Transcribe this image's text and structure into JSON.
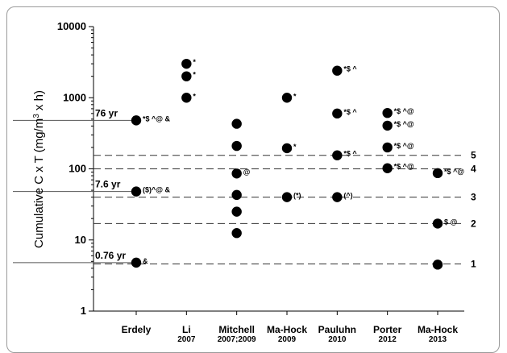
{
  "chart_data": {
    "type": "scatter",
    "ylabel_parts": {
      "main": "Cumulative C x T (mg/m",
      "sup": "3",
      "end": " x h)"
    },
    "y_scale": "log",
    "ylim": [
      1,
      10000
    ],
    "y_ticks": [
      "1",
      "10",
      "100",
      "1000",
      "10000"
    ],
    "categories": [
      {
        "name": "Erdely",
        "year": ""
      },
      {
        "name": "Li",
        "year": "2007"
      },
      {
        "name": "Mitchell",
        "year": "2007;2009"
      },
      {
        "name": "Ma-Hock",
        "year": "2009"
      },
      {
        "name": "Pauluhn",
        "year": "2010"
      },
      {
        "name": "Porter",
        "year": "2012"
      },
      {
        "name": "Ma-Hock",
        "year": "2013"
      }
    ],
    "reference_levels": [
      {
        "label": "1",
        "value": 4.6
      },
      {
        "label": "2",
        "value": 17
      },
      {
        "label": "3",
        "value": 40
      },
      {
        "label": "4",
        "value": 100
      },
      {
        "label": "5",
        "value": 155
      }
    ],
    "human_equivalents": [
      {
        "label": "76 yr",
        "value": 480
      },
      {
        "label": "7.6 yr",
        "value": 48
      },
      {
        "label": "0.76 yr",
        "value": 4.8
      }
    ],
    "points": [
      {
        "category": 0,
        "value": 480,
        "annotation": "*$ ^@ &"
      },
      {
        "category": 0,
        "value": 48,
        "annotation": "($)^@ &"
      },
      {
        "category": 0,
        "value": 4.8,
        "annotation": "&"
      },
      {
        "category": 1,
        "value": 3000,
        "annotation": "*"
      },
      {
        "category": 1,
        "value": 2000,
        "annotation": "*"
      },
      {
        "category": 1,
        "value": 1000,
        "annotation": "*"
      },
      {
        "category": 2,
        "value": 430,
        "annotation": ""
      },
      {
        "category": 2,
        "value": 210,
        "annotation": ""
      },
      {
        "category": 2,
        "value": 86,
        "annotation": "@"
      },
      {
        "category": 2,
        "value": 43,
        "annotation": ""
      },
      {
        "category": 2,
        "value": 25,
        "annotation": ""
      },
      {
        "category": 2,
        "value": 12.5,
        "annotation": ""
      },
      {
        "category": 3,
        "value": 1000,
        "annotation": "*"
      },
      {
        "category": 3,
        "value": 195,
        "annotation": "*"
      },
      {
        "category": 3,
        "value": 40,
        "annotation": "(*)"
      },
      {
        "category": 4,
        "value": 2400,
        "annotation": "*$ ^"
      },
      {
        "category": 4,
        "value": 600,
        "annotation": "*$ ^"
      },
      {
        "category": 4,
        "value": 155,
        "annotation": "*$ ^"
      },
      {
        "category": 4,
        "value": 40,
        "annotation": "(^)"
      },
      {
        "category": 5,
        "value": 610,
        "annotation": "*$ ^@"
      },
      {
        "category": 5,
        "value": 405,
        "annotation": "*$ ^@"
      },
      {
        "category": 5,
        "value": 200,
        "annotation": "*$ ^@"
      },
      {
        "category": 5,
        "value": 102,
        "annotation": "*$ ^@"
      },
      {
        "category": 6,
        "value": 87,
        "annotation": "*$ ^@"
      },
      {
        "category": 6,
        "value": 17,
        "annotation": "$ @"
      },
      {
        "category": 6,
        "value": 4.5,
        "annotation": ""
      }
    ],
    "colors": {
      "marker": "#000000",
      "reference_line": "#333333",
      "frame": "#9a9a9a"
    },
    "grid": false
  }
}
